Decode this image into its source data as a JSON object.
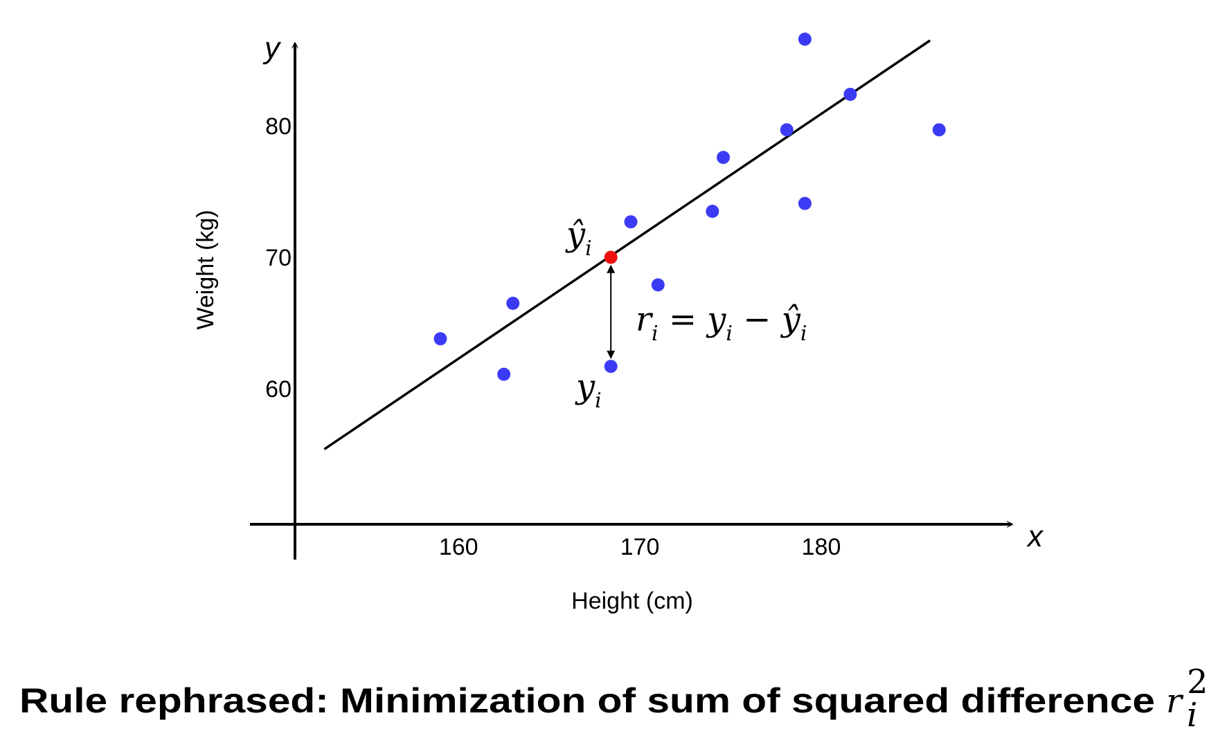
{
  "chart_data": {
    "type": "scatter",
    "x_axis_letter": "x",
    "y_axis_letter": "y",
    "xlabel": "Height (cm)",
    "ylabel": "Weight (kg)",
    "xlim": [
      148.5,
      190.5
    ],
    "ylim": [
      47,
      87
    ],
    "xticks": [
      160,
      170,
      180
    ],
    "yticks": [
      60,
      70,
      80
    ],
    "grid": false,
    "series": [
      {
        "color": "#3b3bf5",
        "x": [
          159.0,
          162.5,
          163.0,
          168.4,
          169.5,
          171.0,
          174.0,
          174.6,
          178.1,
          179.1,
          179.1,
          181.6,
          186.5
        ],
        "values": [
          63.8,
          61.1,
          66.5,
          61.7,
          72.7,
          67.9,
          73.5,
          77.6,
          79.7,
          86.6,
          74.1,
          82.4,
          79.7
        ]
      },
      {
        "color": "#f01010",
        "x": [
          168.4
        ],
        "values": [
          70.0
        ]
      },
      {
        "type": "line",
        "color": "#000000",
        "x": [
          152.6,
          186.0
        ],
        "values": [
          55.4,
          86.5
        ]
      }
    ],
    "annotations": [
      {
        "parts": [
          {
            "text": "ŷ"
          },
          {
            "text": "i",
            "sub": true
          }
        ]
      },
      {
        "parts": [
          {
            "text": "y"
          },
          {
            "text": "i",
            "sub": true
          }
        ]
      },
      {
        "parts": [
          {
            "text": "r"
          },
          {
            "text": "i",
            "sub": true
          },
          {
            "text": " = y"
          },
          {
            "text": "i",
            "sub": true
          },
          {
            "text": " − ŷ"
          },
          {
            "text": "i",
            "sub": true
          }
        ]
      }
    ]
  },
  "caption": {
    "text": "Rule rephrased: Minimization of sum of squared difference",
    "math": {
      "base": "r",
      "sup": "2",
      "sub": "i"
    }
  }
}
